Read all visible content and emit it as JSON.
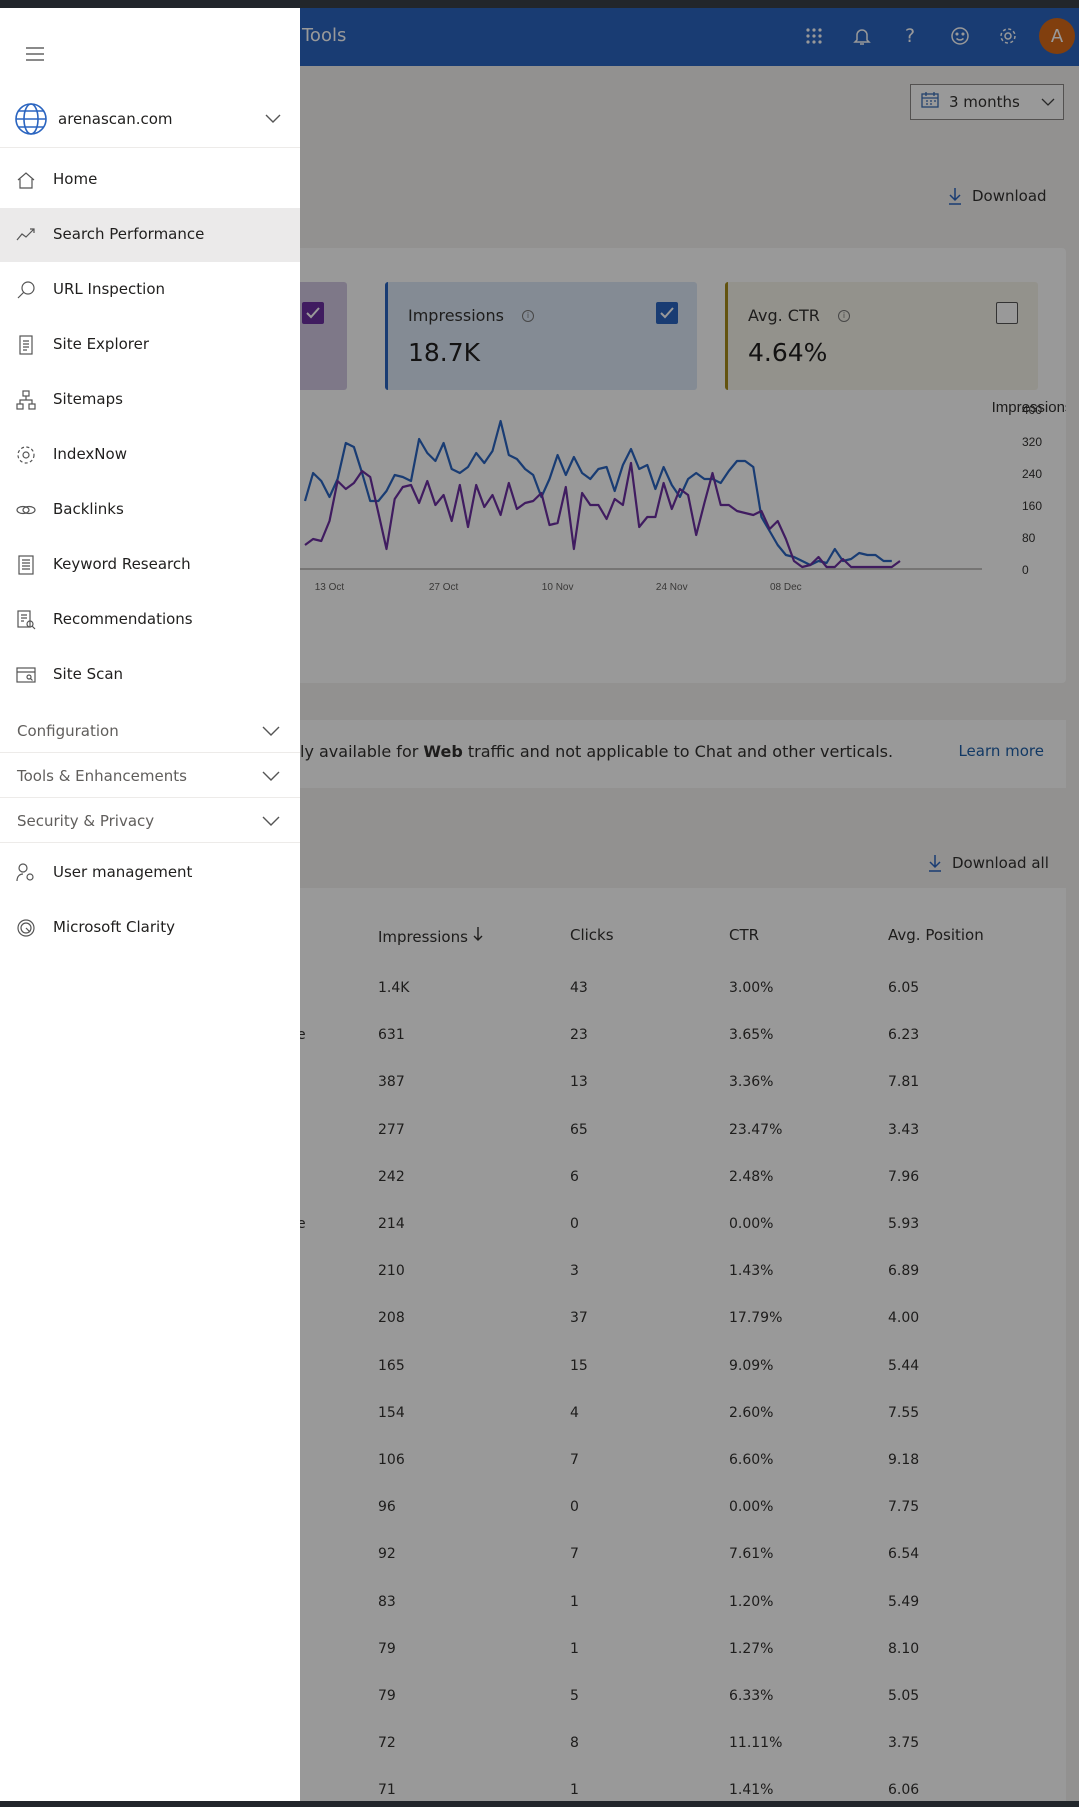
{
  "header": {
    "title": "Tools",
    "avatar_initial": "A"
  },
  "date_range": {
    "value": "3 months"
  },
  "chart_card": {
    "download_label": "Download",
    "metrics": [
      {
        "name": "Impressions",
        "value": "18.7K",
        "checked": true,
        "color": "#2b65c0"
      },
      {
        "name": "Avg. CTR",
        "value": "4.64%",
        "checked": false,
        "color": "#a58a1a"
      }
    ],
    "clicks_checked": true,
    "clicks_color": "#6b2fa0"
  },
  "chart_data": {
    "type": "line",
    "ylabel": "Impressions",
    "ylim": [
      0,
      400
    ],
    "yticks": [
      "400",
      "320",
      "240",
      "160",
      "80",
      "0"
    ],
    "xtick_labels": [
      "13 Oct",
      "27 Oct",
      "10 Nov",
      "24 Nov",
      "08 Dec"
    ],
    "xtick_index": [
      3,
      17,
      31,
      45,
      59
    ],
    "series": [
      {
        "color": "#2b65c0",
        "values": [
          170,
          240,
          220,
          180,
          225,
          315,
          305,
          240,
          170,
          170,
          195,
          235,
          230,
          220,
          325,
          290,
          270,
          315,
          250,
          240,
          255,
          290,
          265,
          295,
          370,
          285,
          275,
          250,
          235,
          180,
          225,
          285,
          235,
          280,
          240,
          225,
          250,
          255,
          195,
          260,
          300,
          250,
          260,
          200,
          255,
          210,
          180,
          225,
          240,
          225,
          225,
          215,
          245,
          270,
          270,
          255,
          130,
          95,
          60,
          35,
          30,
          20,
          10,
          20,
          15,
          50,
          20,
          25,
          40,
          35,
          35,
          20,
          20
        ]
      },
      {
        "color": "#6b2fa0",
        "values": [
          60,
          75,
          70,
          120,
          220,
          200,
          215,
          245,
          230,
          140,
          50,
          175,
          205,
          210,
          165,
          220,
          160,
          185,
          120,
          210,
          105,
          210,
          155,
          185,
          135,
          215,
          150,
          165,
          170,
          190,
          110,
          115,
          205,
          50,
          190,
          160,
          160,
          125,
          175,
          160,
          265,
          105,
          130,
          130,
          215,
          150,
          200,
          185,
          85,
          165,
          240,
          160,
          160,
          145,
          140,
          135,
          145,
          100,
          120,
          75,
          20,
          5,
          10,
          30,
          5,
          5,
          25,
          5,
          5,
          5,
          5,
          5,
          5,
          20
        ]
      }
    ]
  },
  "notice": {
    "lead": "ly available for ",
    "bold": "Web",
    "rest": " traffic and not applicable to Chat and other verticals.",
    "learn_more": "Learn more"
  },
  "table": {
    "download_all": "Download all",
    "columns": [
      "Impressions",
      "Clicks",
      "CTR",
      "Avg. Position"
    ],
    "rows": [
      [
        "1.4K",
        "43",
        "3.00%",
        "6.05",
        ""
      ],
      [
        "631",
        "23",
        "3.65%",
        "6.23",
        "e"
      ],
      [
        "387",
        "13",
        "3.36%",
        "7.81",
        ""
      ],
      [
        "277",
        "65",
        "23.47%",
        "3.43",
        ""
      ],
      [
        "242",
        "6",
        "2.48%",
        "7.96",
        ""
      ],
      [
        "214",
        "0",
        "0.00%",
        "5.93",
        "e"
      ],
      [
        "210",
        "3",
        "1.43%",
        "6.89",
        ""
      ],
      [
        "208",
        "37",
        "17.79%",
        "4.00",
        ""
      ],
      [
        "165",
        "15",
        "9.09%",
        "5.44",
        ""
      ],
      [
        "154",
        "4",
        "2.60%",
        "7.55",
        ""
      ],
      [
        "106",
        "7",
        "6.60%",
        "9.18",
        ""
      ],
      [
        "96",
        "0",
        "0.00%",
        "7.75",
        ""
      ],
      [
        "92",
        "7",
        "7.61%",
        "6.54",
        ""
      ],
      [
        "83",
        "1",
        "1.20%",
        "5.49",
        ""
      ],
      [
        "79",
        "1",
        "1.27%",
        "8.10",
        ""
      ],
      [
        "79",
        "5",
        "6.33%",
        "5.05",
        ""
      ],
      [
        "72",
        "8",
        "11.11%",
        "3.75",
        ""
      ],
      [
        "71",
        "1",
        "1.41%",
        "6.06",
        ""
      ]
    ]
  },
  "sidebar": {
    "site": "arenascan.com",
    "items": [
      {
        "label": "Home",
        "icon": "home-icon",
        "selected": false
      },
      {
        "label": "Search Performance",
        "icon": "trend-icon",
        "selected": true
      },
      {
        "label": "URL Inspection",
        "icon": "search-icon",
        "selected": false
      },
      {
        "label": "Site Explorer",
        "icon": "document-icon",
        "selected": false
      },
      {
        "label": "Sitemaps",
        "icon": "sitemap-icon",
        "selected": false
      },
      {
        "label": "IndexNow",
        "icon": "gear-icon",
        "selected": false
      },
      {
        "label": "Backlinks",
        "icon": "link-icon",
        "selected": false
      },
      {
        "label": "Keyword Research",
        "icon": "list-icon",
        "selected": false
      },
      {
        "label": "Recommendations",
        "icon": "recommendation-icon",
        "selected": false
      },
      {
        "label": "Site Scan",
        "icon": "scan-icon",
        "selected": false
      }
    ],
    "sections": [
      "Configuration",
      "Tools & Enhancements",
      "Security & Privacy"
    ],
    "bottom_items": [
      {
        "label": "User management",
        "icon": "user-gear-icon"
      },
      {
        "label": "Microsoft Clarity",
        "icon": "clarity-icon"
      }
    ]
  }
}
